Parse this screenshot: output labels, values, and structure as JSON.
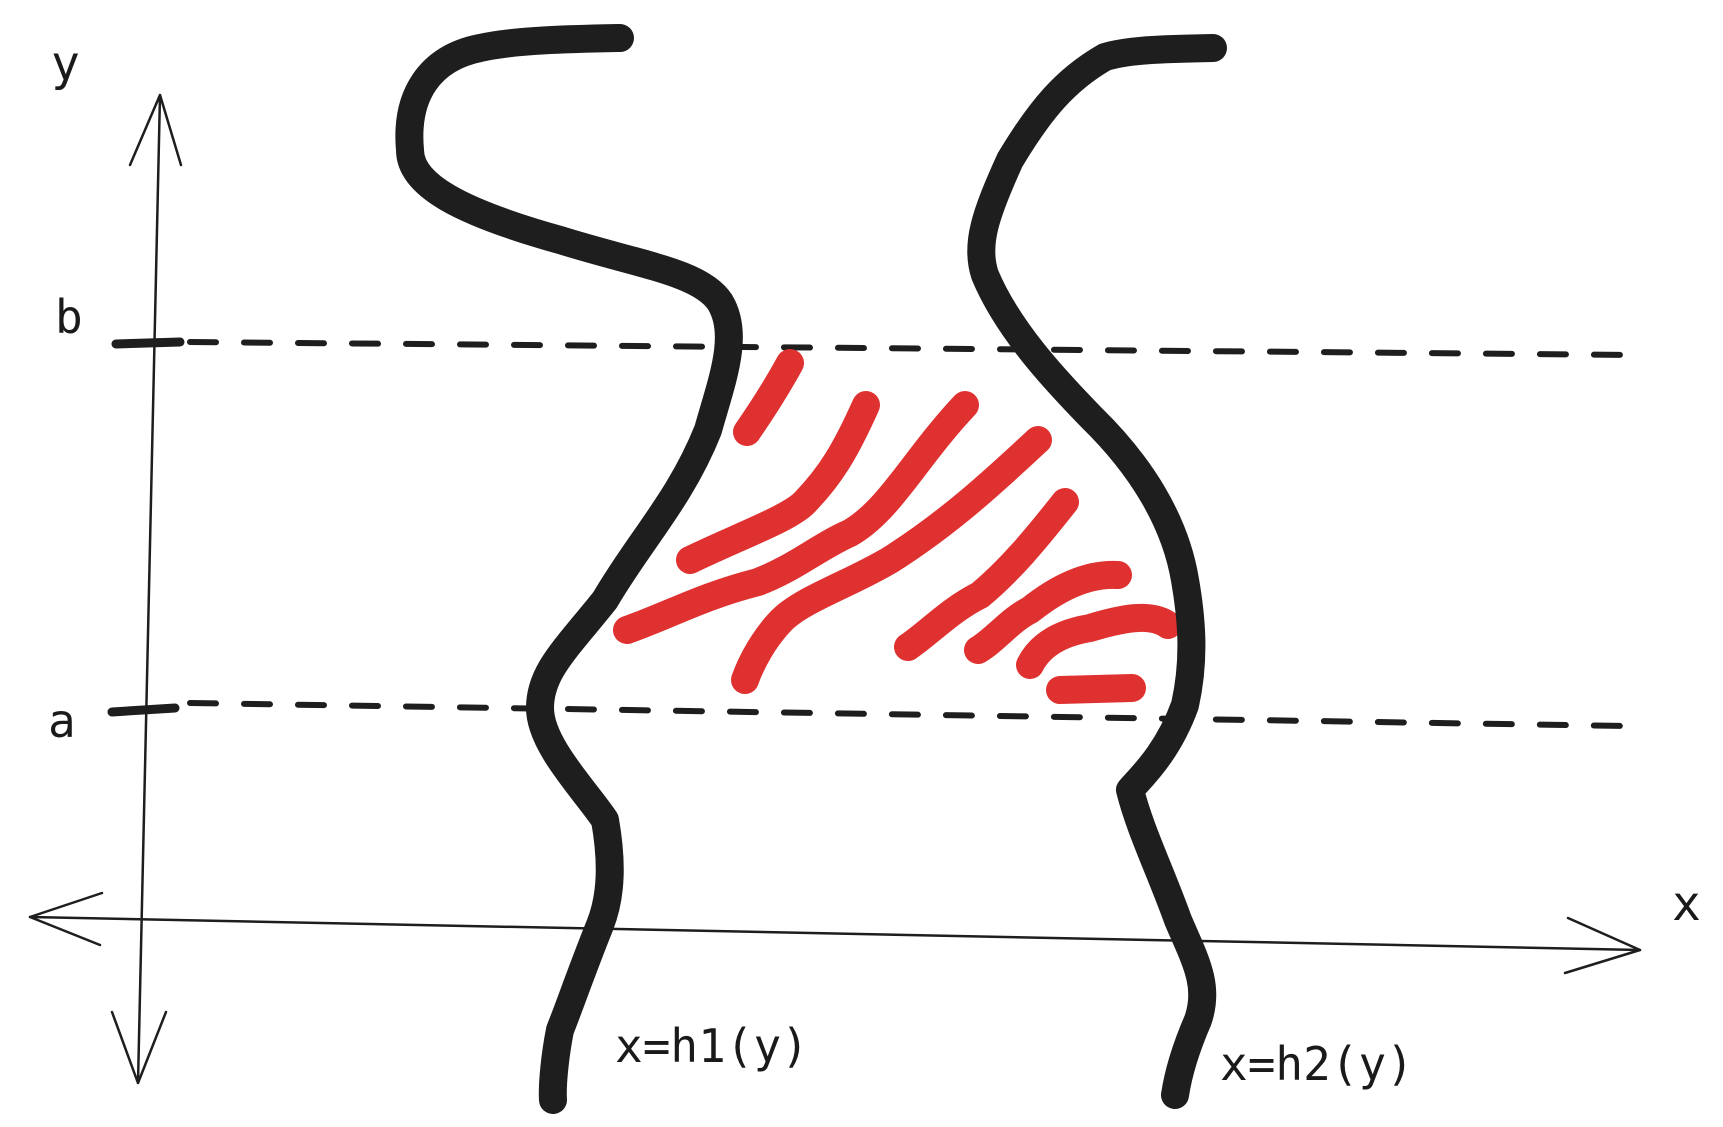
{
  "axes": {
    "x_label": "x",
    "y_label": "y"
  },
  "ticks": {
    "a": "a",
    "b": "b"
  },
  "curves": {
    "left_label": "x=h1(y)",
    "right_label": "x=h2(y)"
  },
  "colors": {
    "ink": "#1e1e1e",
    "region_hatch": "#e03131"
  }
}
